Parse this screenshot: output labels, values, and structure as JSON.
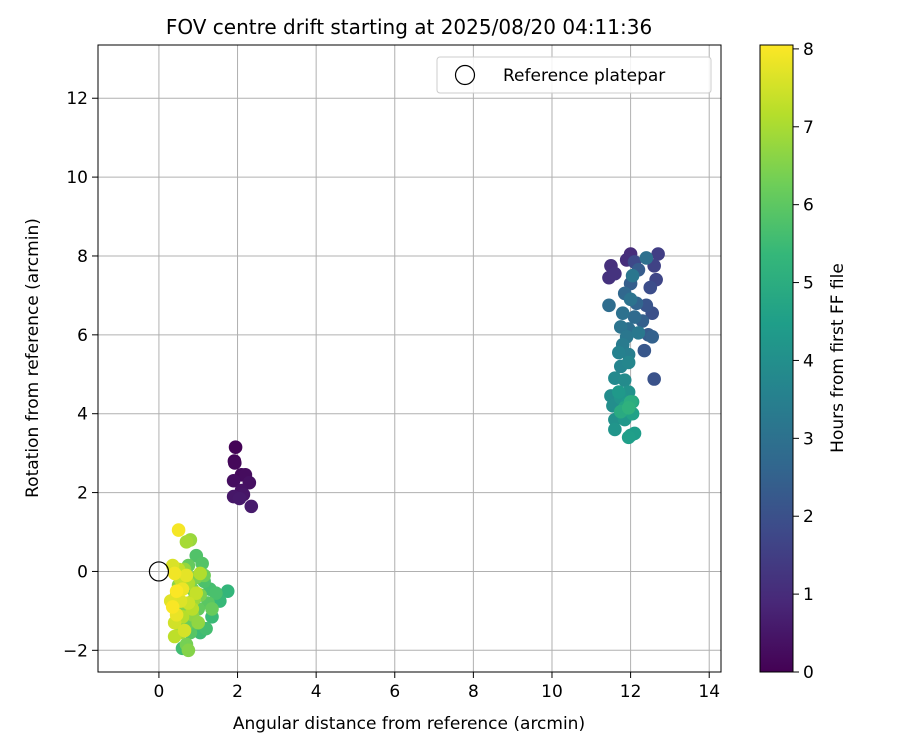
{
  "chart_data": {
    "type": "scatter",
    "title": "FOV centre drift starting at 2025/08/20 04:11:36",
    "xlabel": "Angular distance from reference (arcmin)",
    "ylabel": "Rotation from reference (arcmin)",
    "xlim": [
      -1.55,
      14.3
    ],
    "ylim": [
      -2.55,
      13.35
    ],
    "xticks": [
      0,
      2,
      4,
      6,
      8,
      10,
      12,
      14
    ],
    "yticks": [
      -2,
      0,
      2,
      4,
      6,
      8,
      10,
      12
    ],
    "grid": true,
    "legend": {
      "position": "top-right",
      "entries": [
        {
          "label": "Reference platepar",
          "marker": "open-circle"
        }
      ]
    },
    "reference_point": {
      "x": 0,
      "y": 0
    },
    "colorbar": {
      "label": "Hours from first FF file",
      "range": [
        0,
        8.05
      ],
      "ticks": [
        0,
        1,
        2,
        3,
        4,
        5,
        6,
        7,
        8
      ],
      "colormap": "viridis",
      "colors": [
        "#440154",
        "#482878",
        "#3e4989",
        "#31688e",
        "#26828e",
        "#1f9e89",
        "#35b779",
        "#6ece58",
        "#b5de2b",
        "#fde725"
      ]
    },
    "series": [
      {
        "points": [
          {
            "x": 1.95,
            "y": 3.15,
            "t": 0.05
          },
          {
            "x": 1.92,
            "y": 2.8,
            "t": 0.1
          },
          {
            "x": 1.93,
            "y": 2.75,
            "t": 0.15
          },
          {
            "x": 2.1,
            "y": 2.45,
            "t": 0.2
          },
          {
            "x": 2.2,
            "y": 2.45,
            "t": 0.25
          },
          {
            "x": 1.9,
            "y": 2.3,
            "t": 0.3
          },
          {
            "x": 2.3,
            "y": 2.25,
            "t": 0.35
          },
          {
            "x": 2.1,
            "y": 2.05,
            "t": 0.4
          },
          {
            "x": 2.15,
            "y": 1.95,
            "t": 0.45
          },
          {
            "x": 1.9,
            "y": 1.9,
            "t": 0.5
          },
          {
            "x": 2.05,
            "y": 1.85,
            "t": 0.55
          },
          {
            "x": 2.35,
            "y": 1.65,
            "t": 0.6
          },
          {
            "x": 12.0,
            "y": 8.05,
            "t": 1.0
          },
          {
            "x": 11.9,
            "y": 7.9,
            "t": 1.05
          },
          {
            "x": 11.5,
            "y": 7.75,
            "t": 1.1
          },
          {
            "x": 11.45,
            "y": 7.45,
            "t": 1.15
          },
          {
            "x": 11.6,
            "y": 7.55,
            "t": 1.2
          },
          {
            "x": 12.7,
            "y": 8.05,
            "t": 1.5
          },
          {
            "x": 12.6,
            "y": 7.75,
            "t": 1.6
          },
          {
            "x": 12.65,
            "y": 7.4,
            "t": 1.7
          },
          {
            "x": 12.1,
            "y": 7.85,
            "t": 1.8
          },
          {
            "x": 12.5,
            "y": 7.2,
            "t": 1.9
          },
          {
            "x": 12.55,
            "y": 6.55,
            "t": 2.0
          },
          {
            "x": 12.6,
            "y": 4.88,
            "t": 2.05
          },
          {
            "x": 12.4,
            "y": 6.75,
            "t": 2.1
          },
          {
            "x": 12.35,
            "y": 5.6,
            "t": 2.2
          },
          {
            "x": 12.45,
            "y": 6.0,
            "t": 2.3
          },
          {
            "x": 12.2,
            "y": 7.65,
            "t": 2.35
          },
          {
            "x": 12.0,
            "y": 7.3,
            "t": 2.4
          },
          {
            "x": 12.3,
            "y": 6.35,
            "t": 2.45
          },
          {
            "x": 12.55,
            "y": 5.95,
            "t": 2.5
          },
          {
            "x": 12.15,
            "y": 6.8,
            "t": 2.6
          },
          {
            "x": 11.85,
            "y": 7.05,
            "t": 2.7
          },
          {
            "x": 12.1,
            "y": 6.45,
            "t": 2.8
          },
          {
            "x": 11.45,
            "y": 6.75,
            "t": 2.85
          },
          {
            "x": 11.95,
            "y": 6.15,
            "t": 2.9
          },
          {
            "x": 12.4,
            "y": 7.95,
            "t": 2.95
          },
          {
            "x": 11.8,
            "y": 6.55,
            "t": 3.0
          },
          {
            "x": 12.0,
            "y": 6.9,
            "t": 3.05
          },
          {
            "x": 11.75,
            "y": 6.2,
            "t": 3.1
          },
          {
            "x": 12.05,
            "y": 7.5,
            "t": 3.15
          },
          {
            "x": 11.9,
            "y": 5.95,
            "t": 3.2
          },
          {
            "x": 12.2,
            "y": 6.05,
            "t": 3.25
          },
          {
            "x": 11.8,
            "y": 5.75,
            "t": 3.35
          },
          {
            "x": 11.95,
            "y": 5.5,
            "t": 3.45
          },
          {
            "x": 11.7,
            "y": 5.55,
            "t": 3.55
          },
          {
            "x": 11.75,
            "y": 5.2,
            "t": 3.65
          },
          {
            "x": 11.95,
            "y": 5.3,
            "t": 3.7
          },
          {
            "x": 11.6,
            "y": 4.9,
            "t": 3.8
          },
          {
            "x": 11.85,
            "y": 4.85,
            "t": 3.85
          },
          {
            "x": 11.5,
            "y": 4.45,
            "t": 3.9
          },
          {
            "x": 11.55,
            "y": 4.2,
            "t": 3.95
          },
          {
            "x": 11.6,
            "y": 3.85,
            "t": 4.05
          },
          {
            "x": 11.95,
            "y": 4.55,
            "t": 4.1
          },
          {
            "x": 11.75,
            "y": 4.4,
            "t": 4.15
          },
          {
            "x": 11.6,
            "y": 3.6,
            "t": 4.2
          },
          {
            "x": 11.85,
            "y": 3.85,
            "t": 4.25
          },
          {
            "x": 11.7,
            "y": 4.55,
            "t": 4.3
          },
          {
            "x": 11.9,
            "y": 4.25,
            "t": 4.35
          },
          {
            "x": 12.0,
            "y": 3.45,
            "t": 4.4
          },
          {
            "x": 12.1,
            "y": 3.5,
            "t": 4.45
          },
          {
            "x": 11.95,
            "y": 3.4,
            "t": 4.5
          },
          {
            "x": 12.05,
            "y": 4.0,
            "t": 4.6
          },
          {
            "x": 11.85,
            "y": 4.15,
            "t": 4.7
          },
          {
            "x": 12.05,
            "y": 4.3,
            "t": 4.8
          },
          {
            "x": 11.75,
            "y": 4.05,
            "t": 4.9
          },
          {
            "x": 12.0,
            "y": 4.3,
            "t": 5.0
          },
          {
            "x": 11.95,
            "y": 4.15,
            "t": 5.15
          },
          {
            "x": 1.75,
            "y": -0.5,
            "t": 5.3
          },
          {
            "x": 1.55,
            "y": -0.75,
            "t": 5.4
          },
          {
            "x": 1.35,
            "y": -1.15,
            "t": 5.45
          },
          {
            "x": 1.05,
            "y": -1.55,
            "t": 5.5
          },
          {
            "x": 0.6,
            "y": -1.95,
            "t": 5.55
          },
          {
            "x": 1.2,
            "y": -1.45,
            "t": 5.6
          },
          {
            "x": 1.3,
            "y": -0.45,
            "t": 5.65
          },
          {
            "x": 1.45,
            "y": -0.55,
            "t": 5.7
          },
          {
            "x": 1.15,
            "y": -0.25,
            "t": 5.75
          },
          {
            "x": 0.95,
            "y": 0.4,
            "t": 5.8
          },
          {
            "x": 1.1,
            "y": 0.2,
            "t": 5.85
          },
          {
            "x": 0.8,
            "y": -1.55,
            "t": 5.9
          },
          {
            "x": 1.25,
            "y": -0.8,
            "t": 5.95
          },
          {
            "x": 0.9,
            "y": -1.25,
            "t": 6.0
          },
          {
            "x": 1.0,
            "y": -0.95,
            "t": 6.05
          },
          {
            "x": 0.75,
            "y": 0.15,
            "t": 6.1
          },
          {
            "x": 1.35,
            "y": -0.95,
            "t": 6.15
          },
          {
            "x": 0.7,
            "y": -1.35,
            "t": 6.2
          },
          {
            "x": 1.15,
            "y": -0.1,
            "t": 6.25
          },
          {
            "x": 0.85,
            "y": -0.45,
            "t": 6.3
          },
          {
            "x": 0.7,
            "y": -1.85,
            "t": 6.35
          },
          {
            "x": 1.05,
            "y": -0.6,
            "t": 6.4
          },
          {
            "x": 0.95,
            "y": -0.15,
            "t": 6.45
          },
          {
            "x": 0.6,
            "y": -0.85,
            "t": 6.5
          },
          {
            "x": 0.75,
            "y": -2.0,
            "t": 6.55
          },
          {
            "x": 0.5,
            "y": -0.35,
            "t": 6.6
          },
          {
            "x": 0.85,
            "y": -1.1,
            "t": 6.65
          },
          {
            "x": 1.0,
            "y": -1.3,
            "t": 6.7
          },
          {
            "x": 0.65,
            "y": 0.05,
            "t": 6.75
          },
          {
            "x": 0.8,
            "y": 0.8,
            "t": 6.8
          },
          {
            "x": 0.9,
            "y": -0.7,
            "t": 6.85
          },
          {
            "x": 0.55,
            "y": -1.55,
            "t": 6.9
          },
          {
            "x": 0.7,
            "y": 0.75,
            "t": 6.95
          },
          {
            "x": 0.45,
            "y": -0.6,
            "t": 7.0
          },
          {
            "x": 0.75,
            "y": -0.3,
            "t": 7.05
          },
          {
            "x": 1.05,
            "y": -0.05,
            "t": 7.1
          },
          {
            "x": 0.6,
            "y": -1.15,
            "t": 7.15
          },
          {
            "x": 0.85,
            "y": -0.95,
            "t": 7.2
          },
          {
            "x": 0.4,
            "y": -1.65,
            "t": 7.25
          },
          {
            "x": 0.5,
            "y": 0.05,
            "t": 7.3
          },
          {
            "x": 0.95,
            "y": -0.55,
            "t": 7.35
          },
          {
            "x": 0.55,
            "y": -0.2,
            "t": 7.4
          },
          {
            "x": 0.75,
            "y": -0.8,
            "t": 7.45
          },
          {
            "x": 0.4,
            "y": -1.3,
            "t": 7.5
          },
          {
            "x": 0.65,
            "y": -1.5,
            "t": 7.55
          },
          {
            "x": 0.35,
            "y": 0.15,
            "t": 7.6
          },
          {
            "x": 0.55,
            "y": -0.75,
            "t": 7.65
          },
          {
            "x": 0.3,
            "y": -0.75,
            "t": 7.7
          },
          {
            "x": 0.7,
            "y": -0.1,
            "t": 7.75
          },
          {
            "x": 0.45,
            "y": -1.1,
            "t": 7.8
          },
          {
            "x": 0.6,
            "y": -0.45,
            "t": 7.85
          },
          {
            "x": 0.4,
            "y": -0.05,
            "t": 7.9
          },
          {
            "x": 0.5,
            "y": 1.05,
            "t": 7.95
          },
          {
            "x": 0.35,
            "y": -0.9,
            "t": 8.0
          },
          {
            "x": 0.45,
            "y": -0.5,
            "t": 8.02
          }
        ]
      }
    ]
  }
}
